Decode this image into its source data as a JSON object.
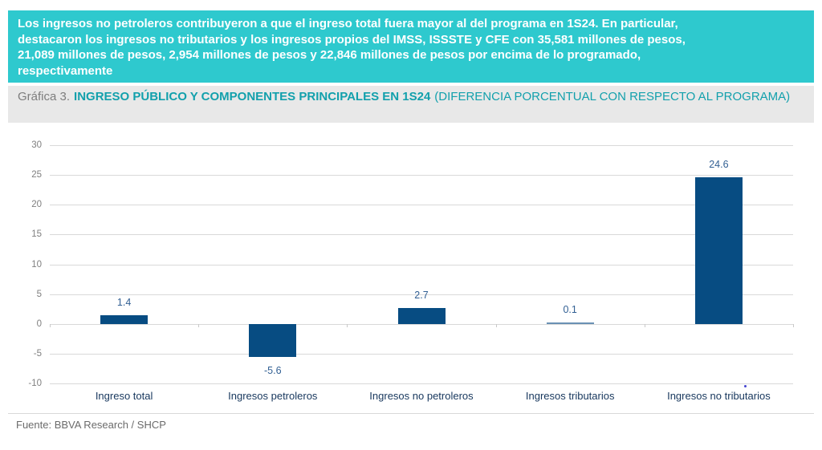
{
  "banner": {
    "text": "Los ingresos no petroleros contribuyeron a que el ingreso total fuera mayor al del programa en 1S24. En particular,\ndestacaron los ingresos no tributarios y los ingresos propios del IMSS, ISSSTE y CFE con 35,581 millones de pesos,\n21,089 millones de pesos, 2,954 millones de pesos y 22,846 millones de pesos por encima de lo programado,\nrespectivamente",
    "bg_color": "#2EC9CE",
    "text_color": "#FFFFFF"
  },
  "chart_header": {
    "prefix": "Gráfica 3.",
    "title_bold": "INGRESO PÚBLICO Y COMPONENTES PRINCIPALES EN 1S24",
    "title_regular": "(DIFERENCIA PORCENTUAL CON RESPECTO AL PROGRAMA)",
    "bg_color": "#E8E8E8",
    "prefix_color": "#7D7D7D",
    "accent_color": "#12A0AC"
  },
  "chart_data": {
    "type": "bar",
    "title": "Gráfica 3. INGRESO PÚBLICO Y COMPONENTES PRINCIPALES EN 1S24 (DIFERENCIA PORCENTUAL CON RESPECTO AL PROGRAMA)",
    "categories": [
      "Ingreso total",
      "Ingresos petroleros",
      "Ingresos no petroleros",
      "Ingresos tributarios",
      "Ingresos no tributarios"
    ],
    "values": [
      1.4,
      -5.6,
      2.7,
      0.1,
      24.6
    ],
    "data_labels": [
      "1.4",
      "-5.6",
      "2.7",
      "0.1",
      "24.6"
    ],
    "xlabel": "",
    "ylabel": "",
    "ylim": [
      -10,
      30
    ],
    "yticks": [
      30,
      25,
      20,
      15,
      10,
      5,
      0,
      -5,
      -10
    ],
    "grid": true,
    "legend": false,
    "bar_color": "#074C82",
    "thin_bar_color": "#6A91B4",
    "value_label_color": "#315F93",
    "category_label_color": "#17375D",
    "axis_label_color": "#7F7F7F",
    "gridline_color": "#D9D9D9",
    "tick_color": "#C8C8C8"
  },
  "footer": {
    "source": "Fuente: BBVA Research / SHCP",
    "color": "#6B6B6B"
  }
}
